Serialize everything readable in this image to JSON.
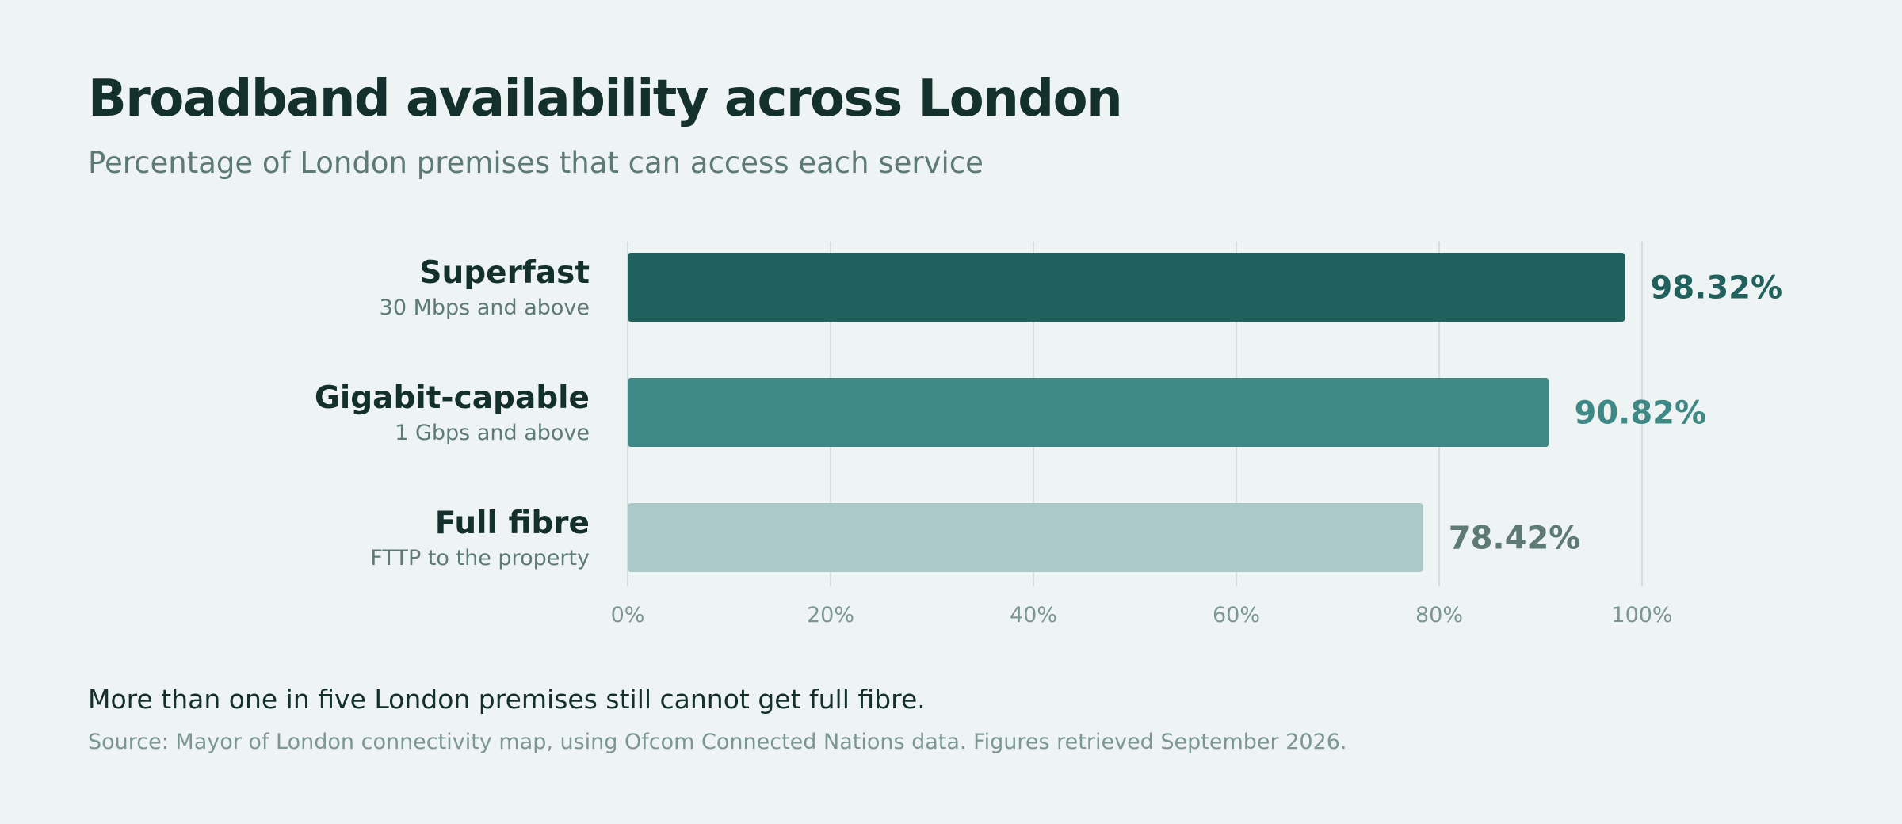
{
  "title": "Broadband availability across London",
  "subtitle": "Percentage of London premises that can access each service",
  "takeaway": "More than one in five London premises still cannot get full fibre.",
  "source": "Source: Mayor of London connectivity map, using Ofcom Connected Nations data. Figures retrieved September 2026.",
  "chart_data": {
    "type": "bar",
    "orientation": "horizontal",
    "categories": [
      "Superfast",
      "Gigabit-capable",
      "Full fibre"
    ],
    "category_descriptions": [
      "30 Mbps and above",
      "1 Gbps and above",
      "FTTP to the property"
    ],
    "values": [
      98.32,
      90.82,
      78.42
    ],
    "value_labels": [
      "98.32%",
      "90.82%",
      "78.42%"
    ],
    "bar_colors": [
      "#20615e",
      "#3e8985",
      "#aac9c8"
    ],
    "label_colors": [
      "#20615e",
      "#3e8985",
      "#5e7a76"
    ],
    "xlim": [
      0,
      100
    ],
    "xticks": [
      0,
      20,
      40,
      60,
      80,
      100
    ],
    "xtick_labels": [
      "0%",
      "20%",
      "40%",
      "60%",
      "80%",
      "100%"
    ],
    "grid": true
  }
}
